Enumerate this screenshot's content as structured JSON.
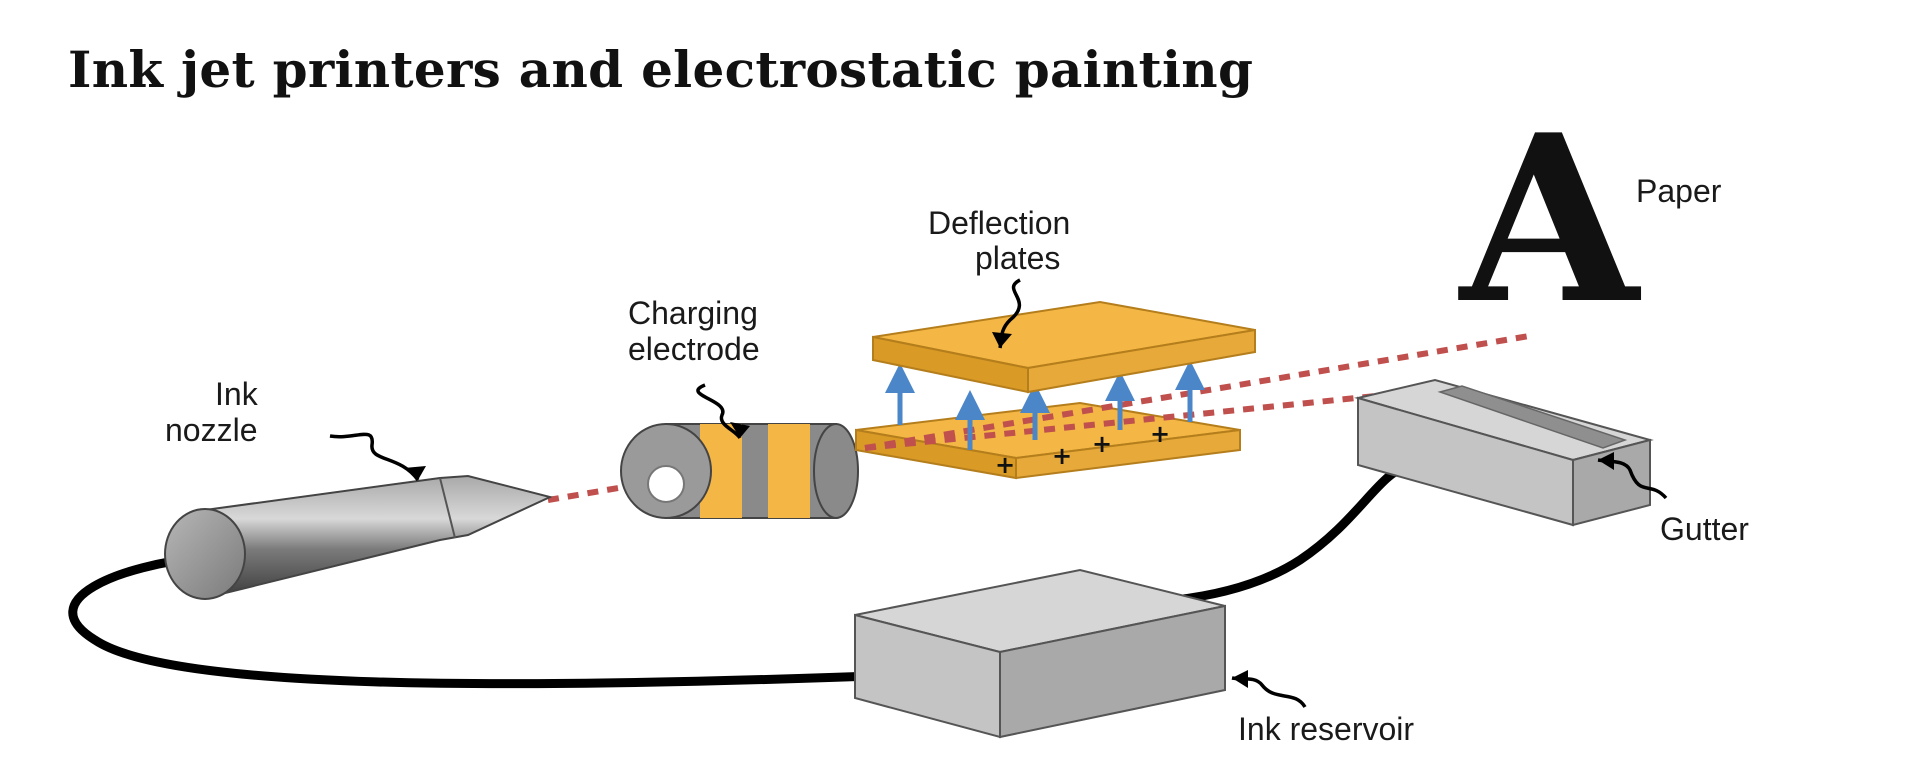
{
  "title": "Ink jet printers and electrostatic painting",
  "labels": {
    "ink_nozzle_line1": "Ink",
    "ink_nozzle_line2": "nozzle",
    "charging_electrode_line1": "Charging",
    "charging_electrode_line2": "electrode",
    "deflection_plates_line1": "Deflection",
    "deflection_plates_line2": "plates",
    "paper": "Paper",
    "gutter": "Gutter",
    "ink_reservoir": "Ink reservoir"
  },
  "paper_letter": "A",
  "plate_charge_symbol": "+",
  "colors": {
    "plate": "#F4B745",
    "plate_dark": "#D99A26",
    "droplets": "#C0504D",
    "field_arrows": "#4A86C8",
    "box": "#BDBDBD"
  }
}
